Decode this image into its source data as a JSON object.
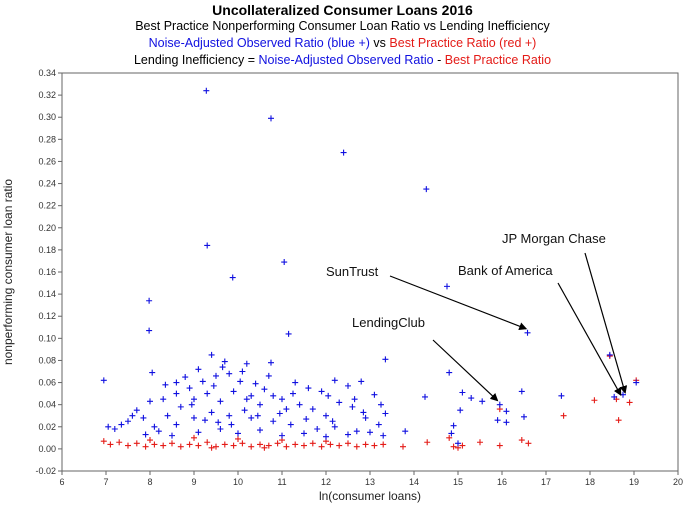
{
  "header": {
    "title": "Uncollateralized Consumer Loans 2016",
    "line2": "Best Practice Nonperforming Consumer Loan Ratio vs Lending Inefficiency",
    "line3_blue": "Noise-Adjusted Observed Ratio (blue +)",
    "line3_vs": "vs",
    "line3_red": "Best Practice Ratio (red +)",
    "line4_black": "Lending Inefficiency =",
    "line4_blue": "Noise-Adjusted Observed Ratio",
    "line4_dash": "-",
    "line4_red": "Best Practice Ratio"
  },
  "chart_data": {
    "type": "scatter",
    "title": "Uncollateralized Consumer Loans 2016",
    "xlabel": "ln(consumer loans)",
    "ylabel": "nonperforming consumer loan ratio",
    "xlim": [
      6,
      20
    ],
    "ylim": [
      -0.02,
      0.34
    ],
    "x_ticks": [
      6,
      7,
      8,
      9,
      10,
      11,
      12,
      13,
      14,
      15,
      16,
      17,
      18,
      19,
      20
    ],
    "y_ticks": [
      -0.02,
      0.0,
      0.02,
      0.04,
      0.06,
      0.08,
      0.1,
      0.12,
      0.14,
      0.16,
      0.18,
      0.2,
      0.22,
      0.24,
      0.26,
      0.28,
      0.3,
      0.32,
      0.34
    ],
    "y_tick_labels": [
      "-0.02",
      "0.00",
      "0.02",
      "0.04",
      "0.06",
      "0.08",
      "0.10",
      "0.12",
      "0.14",
      "0.16",
      "0.18",
      "0.20",
      "0.22",
      "0.24",
      "0.26",
      "0.28",
      "0.30",
      "0.32",
      "0.34"
    ],
    "marker": "+",
    "grid": false,
    "colors": {
      "observed": "#1010e0",
      "best_practice": "#e41b17"
    },
    "series": [
      {
        "name": "Noise-Adjusted Observed Ratio (blue +)",
        "color": "#1010e0",
        "points": [
          [
            6.95,
            0.062
          ],
          [
            9.28,
            0.324
          ],
          [
            10.75,
            0.299
          ],
          [
            12.4,
            0.268
          ],
          [
            14.28,
            0.235
          ],
          [
            9.3,
            0.184
          ],
          [
            11.05,
            0.169
          ],
          [
            9.88,
            0.155
          ],
          [
            14.75,
            0.147
          ],
          [
            7.98,
            0.134
          ],
          [
            7.98,
            0.107
          ],
          [
            11.15,
            0.104
          ],
          [
            16.58,
            0.105
          ],
          [
            13.35,
            0.081
          ],
          [
            9.4,
            0.085
          ],
          [
            10.2,
            0.077
          ],
          [
            10.75,
            0.078
          ],
          [
            8.05,
            0.069
          ],
          [
            8.6,
            0.06
          ],
          [
            9.1,
            0.072
          ],
          [
            9.7,
            0.079
          ],
          [
            14.8,
            0.069
          ],
          [
            14.25,
            0.047
          ],
          [
            15.1,
            0.051
          ],
          [
            16.45,
            0.052
          ],
          [
            17.35,
            0.048
          ],
          [
            18.55,
            0.047
          ],
          [
            19.05,
            0.06
          ],
          [
            18.75,
            0.049
          ],
          [
            18.45,
            0.085
          ],
          [
            15.95,
            0.04
          ],
          [
            16.1,
            0.034
          ],
          [
            15.05,
            0.035
          ],
          [
            15.3,
            0.046
          ],
          [
            15.55,
            0.043
          ],
          [
            15.9,
            0.026
          ],
          [
            16.1,
            0.024
          ],
          [
            16.5,
            0.029
          ],
          [
            14.9,
            0.021
          ],
          [
            14.85,
            0.014
          ],
          [
            15.0,
            0.005
          ],
          [
            13.8,
            0.016
          ],
          [
            13.35,
            0.032
          ],
          [
            13.1,
            0.049
          ],
          [
            12.8,
            0.061
          ],
          [
            12.5,
            0.057
          ],
          [
            12.2,
            0.062
          ],
          [
            11.9,
            0.052
          ],
          [
            11.6,
            0.055
          ],
          [
            11.3,
            0.06
          ],
          [
            11.0,
            0.045
          ],
          [
            10.7,
            0.066
          ],
          [
            10.4,
            0.059
          ],
          [
            10.1,
            0.07
          ],
          [
            9.8,
            0.068
          ],
          [
            9.5,
            0.066
          ],
          [
            9.2,
            0.061
          ],
          [
            8.9,
            0.055
          ],
          [
            8.6,
            0.05
          ],
          [
            8.3,
            0.045
          ],
          [
            8.0,
            0.043
          ],
          [
            7.7,
            0.035
          ],
          [
            7.5,
            0.025
          ],
          [
            7.2,
            0.018
          ],
          [
            7.05,
            0.02
          ],
          [
            7.35,
            0.022
          ],
          [
            7.6,
            0.03
          ],
          [
            7.85,
            0.028
          ],
          [
            8.1,
            0.02
          ],
          [
            8.4,
            0.03
          ],
          [
            8.7,
            0.038
          ],
          [
            9.0,
            0.045
          ],
          [
            9.3,
            0.05
          ],
          [
            9.6,
            0.043
          ],
          [
            9.9,
            0.052
          ],
          [
            10.2,
            0.045
          ],
          [
            10.5,
            0.04
          ],
          [
            10.8,
            0.048
          ],
          [
            11.1,
            0.036
          ],
          [
            11.4,
            0.04
          ],
          [
            11.7,
            0.036
          ],
          [
            12.0,
            0.03
          ],
          [
            12.3,
            0.042
          ],
          [
            12.6,
            0.038
          ],
          [
            12.9,
            0.028
          ],
          [
            13.2,
            0.022
          ],
          [
            13.3,
            0.012
          ],
          [
            12.7,
            0.016
          ],
          [
            12.2,
            0.02
          ],
          [
            11.8,
            0.018
          ],
          [
            11.2,
            0.022
          ],
          [
            10.8,
            0.025
          ],
          [
            10.3,
            0.028
          ],
          [
            9.8,
            0.03
          ],
          [
            9.4,
            0.033
          ],
          [
            9.0,
            0.028
          ],
          [
            8.6,
            0.022
          ],
          [
            8.2,
            0.016
          ],
          [
            7.9,
            0.013
          ],
          [
            8.5,
            0.012
          ],
          [
            9.1,
            0.015
          ],
          [
            9.6,
            0.018
          ],
          [
            10.0,
            0.014
          ],
          [
            10.5,
            0.017
          ],
          [
            11.0,
            0.012
          ],
          [
            11.5,
            0.014
          ],
          [
            12.0,
            0.011
          ],
          [
            12.5,
            0.013
          ],
          [
            13.0,
            0.015
          ],
          [
            8.8,
            0.065
          ],
          [
            9.45,
            0.057
          ],
          [
            10.05,
            0.061
          ],
          [
            10.6,
            0.054
          ],
          [
            11.25,
            0.05
          ],
          [
            12.05,
            0.048
          ],
          [
            12.65,
            0.045
          ],
          [
            13.25,
            0.04
          ],
          [
            8.35,
            0.058
          ],
          [
            9.65,
            0.074
          ],
          [
            10.3,
            0.048
          ],
          [
            8.95,
            0.04
          ],
          [
            9.25,
            0.026
          ],
          [
            9.55,
            0.024
          ],
          [
            9.85,
            0.022
          ],
          [
            10.15,
            0.035
          ],
          [
            10.45,
            0.03
          ],
          [
            10.95,
            0.032
          ],
          [
            11.55,
            0.027
          ],
          [
            12.15,
            0.025
          ],
          [
            12.85,
            0.033
          ]
        ]
      },
      {
        "name": "Best Practice Ratio (red +)",
        "color": "#e41b17",
        "points": [
          [
            6.95,
            0.007
          ],
          [
            7.1,
            0.004
          ],
          [
            7.3,
            0.006
          ],
          [
            7.5,
            0.003
          ],
          [
            7.7,
            0.005
          ],
          [
            7.9,
            0.002
          ],
          [
            8.1,
            0.004
          ],
          [
            8.3,
            0.003
          ],
          [
            8.5,
            0.005
          ],
          [
            8.7,
            0.002
          ],
          [
            8.9,
            0.004
          ],
          [
            9.1,
            0.003
          ],
          [
            9.3,
            0.006
          ],
          [
            9.5,
            0.002
          ],
          [
            9.7,
            0.004
          ],
          [
            9.9,
            0.003
          ],
          [
            10.1,
            0.005
          ],
          [
            10.3,
            0.002
          ],
          [
            10.5,
            0.004
          ],
          [
            10.7,
            0.003
          ],
          [
            10.9,
            0.005
          ],
          [
            11.1,
            0.002
          ],
          [
            11.3,
            0.004
          ],
          [
            11.5,
            0.003
          ],
          [
            11.7,
            0.005
          ],
          [
            11.9,
            0.002
          ],
          [
            12.1,
            0.004
          ],
          [
            12.3,
            0.003
          ],
          [
            12.5,
            0.005
          ],
          [
            12.7,
            0.002
          ],
          [
            12.9,
            0.004
          ],
          [
            13.1,
            0.003
          ],
          [
            13.3,
            0.004
          ],
          [
            8.0,
            0.008
          ],
          [
            9.0,
            0.01
          ],
          [
            10.0,
            0.009
          ],
          [
            11.0,
            0.008
          ],
          [
            12.0,
            0.007
          ],
          [
            9.4,
            0.001
          ],
          [
            10.6,
            0.001
          ],
          [
            13.75,
            0.002
          ],
          [
            14.8,
            0.01
          ],
          [
            14.9,
            0.002
          ],
          [
            15.1,
            0.003
          ],
          [
            15.5,
            0.006
          ],
          [
            15.95,
            0.003
          ],
          [
            16.45,
            0.008
          ],
          [
            16.6,
            0.005
          ],
          [
            15.95,
            0.036
          ],
          [
            17.4,
            0.03
          ],
          [
            18.1,
            0.044
          ],
          [
            18.65,
            0.026
          ],
          [
            18.45,
            0.084
          ],
          [
            18.9,
            0.042
          ],
          [
            19.05,
            0.062
          ],
          [
            18.6,
            0.045
          ],
          [
            15.0,
            0.001
          ],
          [
            14.3,
            0.006
          ]
        ]
      }
    ],
    "annotations": [
      {
        "label": "JP Morgan Chase",
        "x": 18.8,
        "y": 0.047
      },
      {
        "label": "Bank of America",
        "x": 18.7,
        "y": 0.045
      },
      {
        "label": "SunTrust",
        "x": 16.55,
        "y": 0.105
      },
      {
        "label": "LendingClub",
        "x": 15.9,
        "y": 0.04
      }
    ]
  }
}
